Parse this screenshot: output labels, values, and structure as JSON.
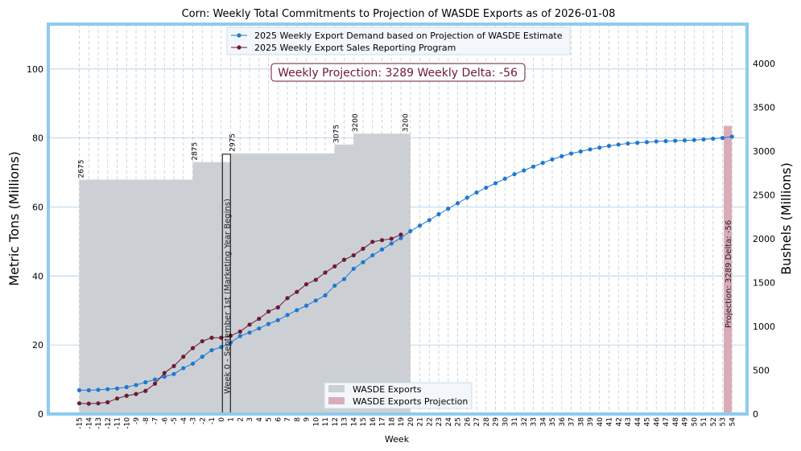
{
  "chart_data": {
    "type": "bar+line",
    "title": "Corn: Weekly Total Commitments to Projection of WASDE Exports as of 2026-01-08",
    "xlabel": "Week",
    "ylabel": "Metric Tons (Millions)",
    "y2label": "Bushels (Millions)",
    "xlim": [
      -15,
      54
    ],
    "ylim": [
      0,
      113
    ],
    "y2lim": [
      0,
      4450
    ],
    "y_ticks": [
      0,
      20,
      40,
      60,
      80,
      100
    ],
    "y2_ticks": [
      0,
      500,
      1000,
      1500,
      2000,
      2500,
      3000,
      3500,
      4000
    ],
    "grid": true,
    "annotation_box": {
      "text": "Weekly Projection: 3289    Weekly Delta: -56"
    },
    "marketing_year_label": "Week 0 - September 1st (Marketing Year Begins)",
    "projection_bar_label": "Projection: 3289    Delta: -56",
    "wasde_exports": {
      "name": "WASDE Exports",
      "segments": [
        {
          "start": -15,
          "end": -3,
          "value_bushels": 2675,
          "label": "2675"
        },
        {
          "start": -3,
          "end": 1,
          "value_bushels": 2875,
          "label": "2875"
        },
        {
          "start": 1,
          "end": 12,
          "value_bushels": 2975,
          "label": "2975"
        },
        {
          "start": 12,
          "end": 14,
          "value_bushels": 3075,
          "label": "3075"
        },
        {
          "start": 14,
          "end": 20,
          "value_bushels": 3200,
          "label": "3200"
        }
      ],
      "extra_labels": [
        {
          "week": 20,
          "label": "3200"
        }
      ]
    },
    "wasde_projection": {
      "name": "WASDE Exports Projection",
      "week": 53,
      "value_bushels": 3289
    },
    "series": [
      {
        "name": "2025 Weekly Export Demand based on Projection of WASDE Estimate",
        "color": "#1f78d1",
        "x_start": -15,
        "values": [
          6.9,
          6.9,
          7.0,
          7.2,
          7.4,
          7.8,
          8.4,
          9.2,
          10.0,
          10.8,
          11.6,
          13.3,
          14.6,
          16.6,
          18.5,
          19.4,
          20.7,
          22.6,
          23.6,
          24.8,
          26.1,
          27.2,
          28.7,
          30.1,
          31.4,
          32.9,
          34.4,
          37.2,
          39.1,
          42.1,
          44.0,
          46.0,
          47.7,
          49.4,
          51.0,
          53.0,
          54.6,
          56.2,
          57.9,
          59.5,
          61.1,
          62.7,
          64.2,
          65.6,
          66.9,
          68.2,
          69.5,
          70.6,
          71.7,
          72.8,
          73.8,
          74.7,
          75.5,
          76.1,
          76.7,
          77.2,
          77.7,
          78.1,
          78.4,
          78.6,
          78.8,
          79.0,
          79.1,
          79.2,
          79.3,
          79.4,
          79.6,
          79.8,
          80.0,
          80.4
        ]
      },
      {
        "name": "2025 Weekly Export Sales Reporting Program",
        "color": "#6e1a35",
        "x_start": -15,
        "values": [
          3.1,
          3.0,
          3.1,
          3.4,
          4.5,
          5.3,
          5.8,
          6.7,
          8.8,
          11.9,
          13.9,
          16.6,
          19.1,
          21.1,
          22.1,
          22.1,
          22.7,
          23.9,
          25.9,
          27.6,
          29.7,
          30.9,
          33.6,
          35.4,
          37.6,
          38.9,
          41.0,
          42.8,
          44.7,
          46.0,
          47.9,
          49.9,
          50.4,
          50.8,
          52.0
        ]
      }
    ],
    "x_tick_labels": [
      "-15",
      "-14",
      "-13",
      "-12",
      "-11",
      "-10",
      "-9",
      "-8",
      "-7",
      "-6",
      "-5",
      "-4",
      "-3",
      "-2",
      "-1",
      "0",
      "1",
      "2",
      "3",
      "4",
      "5",
      "6",
      "7",
      "8",
      "9",
      "10",
      "11",
      "12",
      "13",
      "14",
      "15",
      "16",
      "17",
      "18",
      "19",
      "20",
      "21",
      "22",
      "23",
      "24",
      "25",
      "26",
      "27",
      "28",
      "29",
      "30",
      "31",
      "32",
      "33",
      "34",
      "35",
      "36",
      "37",
      "38",
      "39",
      "40",
      "41",
      "42",
      "43",
      "44",
      "45",
      "46",
      "47",
      "48",
      "49",
      "50",
      "51",
      "52",
      "53",
      "54"
    ],
    "colors": {
      "frame": "#8ecbee",
      "wasde_fill": "#ccd0d4",
      "projection_fill": "#d9acb8",
      "demand_line": "#1f78d1",
      "sales_line": "#6e1a35",
      "annotation_border": "#6e1a35",
      "annotation_text": "#6e1a35"
    },
    "legend_top": [
      "2025 Weekly Export Demand based on Projection of WASDE Estimate",
      "2025 Weekly Export Sales Reporting Program"
    ],
    "legend_bottom": [
      "WASDE Exports",
      "WASDE Exports Projection"
    ]
  }
}
